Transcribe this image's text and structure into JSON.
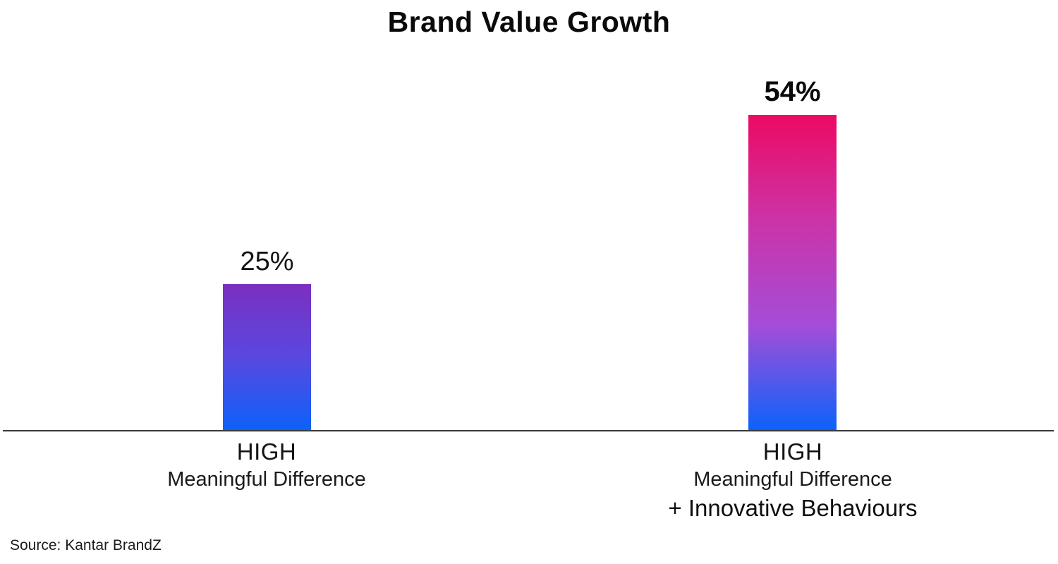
{
  "title": "Brand Value Growth",
  "source": "Source: Kantar BrandZ",
  "colors": {
    "bar1_gradient": [
      "#7b2fc0",
      "#5948e0",
      "#0b62fa"
    ],
    "bar2_gradient": [
      "#ec0a63",
      "#cc33a8",
      "#a44dd8",
      "#0b62fa"
    ],
    "axis": "#3a3a3a",
    "text": "#111111",
    "background": "#ffffff"
  },
  "chart_data": {
    "type": "bar",
    "title": "Brand Value Growth",
    "categories": [
      "HIGH Meaningful Difference",
      "HIGH Meaningful Difference + Innovative Behaviours"
    ],
    "values": [
      25,
      54
    ],
    "value_labels": [
      "25%",
      "54%"
    ],
    "xlabel": "",
    "ylabel": "",
    "ylim": [
      0,
      60
    ],
    "grid": false,
    "legend": false,
    "yaxis_visible": false,
    "source": "Source: Kantar BrandZ"
  },
  "bars": [
    {
      "value": 25,
      "label_value": "25%",
      "line1": "HIGH",
      "line2": "Meaningful Difference",
      "line3": ""
    },
    {
      "value": 54,
      "label_value": "54%",
      "line1": "HIGH",
      "line2": "Meaningful Difference",
      "line3": "+ Innovative Behaviours"
    }
  ]
}
